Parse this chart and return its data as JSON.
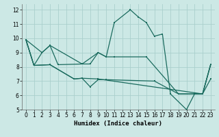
{
  "xlabel": "Humidex (Indice chaleur)",
  "xlim": [
    -0.5,
    23.5
  ],
  "ylim": [
    5,
    12.4
  ],
  "xticks": [
    0,
    1,
    2,
    3,
    4,
    5,
    6,
    7,
    8,
    9,
    10,
    11,
    12,
    13,
    14,
    15,
    16,
    17,
    18,
    19,
    20,
    21,
    22,
    23
  ],
  "yticks": [
    5,
    6,
    7,
    8,
    9,
    10,
    11,
    12
  ],
  "background_color": "#cce8e5",
  "line_color": "#1a6b5e",
  "grid_color": "#aacfcc",
  "lines": [
    [
      [
        0,
        9.9
      ],
      [
        1,
        8.1
      ],
      [
        2,
        9.0
      ],
      [
        3,
        9.5
      ],
      [
        4,
        8.15
      ],
      [
        7,
        8.2
      ],
      [
        8,
        8.2
      ],
      [
        9,
        9.0
      ],
      [
        10,
        8.7
      ],
      [
        11,
        11.1
      ],
      [
        13,
        12.0
      ],
      [
        14,
        11.5
      ],
      [
        15,
        11.1
      ],
      [
        16,
        10.15
      ],
      [
        17,
        10.3
      ],
      [
        18,
        6.1
      ],
      [
        20,
        5.0
      ],
      [
        21,
        6.1
      ],
      [
        22,
        6.1
      ],
      [
        23,
        8.15
      ]
    ],
    [
      [
        0,
        9.9
      ],
      [
        2,
        9.0
      ],
      [
        3,
        9.5
      ],
      [
        7,
        8.2
      ],
      [
        9,
        9.0
      ],
      [
        10,
        8.7
      ],
      [
        11,
        8.7
      ],
      [
        15,
        8.7
      ],
      [
        19,
        6.1
      ],
      [
        22,
        6.1
      ],
      [
        23,
        8.15
      ]
    ],
    [
      [
        0,
        9.9
      ],
      [
        1,
        8.1
      ],
      [
        3,
        8.15
      ],
      [
        6,
        7.15
      ],
      [
        7,
        7.2
      ],
      [
        8,
        6.6
      ],
      [
        9,
        7.1
      ],
      [
        10,
        7.1
      ],
      [
        16,
        7.0
      ],
      [
        19,
        6.1
      ],
      [
        22,
        6.1
      ],
      [
        23,
        7.15
      ]
    ],
    [
      [
        0,
        9.9
      ],
      [
        1,
        8.1
      ],
      [
        3,
        8.15
      ],
      [
        6,
        7.15
      ],
      [
        7,
        7.2
      ],
      [
        9,
        7.15
      ],
      [
        22,
        6.1
      ],
      [
        23,
        8.15
      ]
    ]
  ]
}
